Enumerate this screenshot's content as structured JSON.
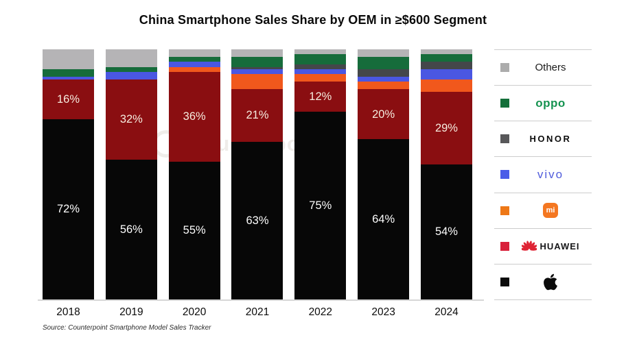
{
  "title": "China Smartphone Sales Share by OEM in ≥$600 Segment",
  "source": "Source: Counterpoint Smartphone Model Sales Tracker",
  "watermark": "Counterpoint",
  "chart_data": {
    "type": "bar",
    "stacked": true,
    "unit": "%",
    "title": "China Smartphone Sales Share by OEM in ≥$600 Segment",
    "categories": [
      "2018",
      "2019",
      "2020",
      "2021",
      "2022",
      "2023",
      "2024"
    ],
    "series": [
      {
        "name": "Others",
        "color": "#b5b4b6",
        "values": [
          8,
          7,
          3,
          3,
          2,
          3,
          2
        ],
        "show_labels": false
      },
      {
        "name": "OPPO",
        "color": "#166c3b",
        "values": [
          3,
          2,
          2,
          4,
          4,
          5,
          3
        ],
        "show_labels": false
      },
      {
        "name": "HONOR",
        "color": "#44474a",
        "values": [
          0,
          0,
          0,
          1,
          2,
          3,
          3
        ],
        "show_labels": false
      },
      {
        "name": "vivo",
        "color": "#4a57e2",
        "values": [
          1,
          3,
          2,
          2,
          2,
          2,
          4
        ],
        "show_labels": false
      },
      {
        "name": "Xiaomi",
        "color": "#f1581c",
        "values": [
          0,
          0,
          2,
          6,
          3,
          3,
          5
        ],
        "show_labels": false
      },
      {
        "name": "HUAWEI",
        "color": "#8a0e11",
        "values": [
          16,
          32,
          36,
          21,
          12,
          20,
          29
        ],
        "show_labels": true,
        "label_color": "#f6ecdf"
      },
      {
        "name": "Apple",
        "color": "#070707",
        "values": [
          72,
          56,
          55,
          63,
          75,
          64,
          54
        ],
        "show_labels": true,
        "label_color": "#fdfdfd"
      }
    ],
    "ylim": [
      0,
      100
    ],
    "grid": false,
    "legend_position": "right",
    "stack_order_top_to_bottom": [
      "Others",
      "OPPO",
      "HONOR",
      "vivo",
      "Xiaomi",
      "HUAWEI",
      "Apple"
    ]
  },
  "legend": {
    "items": [
      {
        "name": "Others",
        "label": "Others",
        "swatch_color": "#acacac"
      },
      {
        "name": "OPPO",
        "label": "oppo",
        "swatch_color": "#14703a"
      },
      {
        "name": "HONOR",
        "label": "HONOR",
        "swatch_color": "#58585a"
      },
      {
        "name": "vivo",
        "label": "vivo",
        "swatch_color": "#4a5ce8"
      },
      {
        "name": "Xiaomi",
        "label": "mi",
        "swatch_color": "#ee7817",
        "icon": "xiaomi-logo"
      },
      {
        "name": "HUAWEI",
        "label": "HUAWEI",
        "swatch_color": "#d8203a",
        "icon": "huawei-flower"
      },
      {
        "name": "Apple",
        "label": "",
        "swatch_color": "#0b0b0b",
        "icon": "apple-logo"
      }
    ]
  },
  "colors": {
    "axis_line": "#d6d6d6",
    "legend_divider": "#cccccc",
    "background": "#ffffff"
  }
}
